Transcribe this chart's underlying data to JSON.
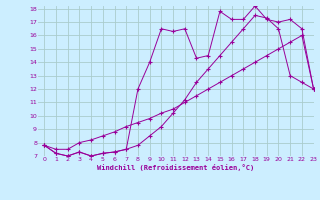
{
  "xlabel": "Windchill (Refroidissement éolien,°C)",
  "bg_color": "#cceeff",
  "line_color": "#990099",
  "grid_color": "#aacccc",
  "xlim": [
    -0.5,
    23
  ],
  "ylim": [
    7,
    18.2
  ],
  "xticks": [
    0,
    1,
    2,
    3,
    4,
    5,
    6,
    7,
    8,
    9,
    10,
    11,
    12,
    13,
    14,
    15,
    16,
    17,
    18,
    19,
    20,
    21,
    22,
    23
  ],
  "yticks": [
    7,
    8,
    9,
    10,
    11,
    12,
    13,
    14,
    15,
    16,
    17,
    18
  ],
  "line1_x": [
    0,
    1,
    2,
    3,
    4,
    5,
    6,
    7,
    8,
    9,
    10,
    11,
    12,
    13,
    14,
    15,
    16,
    17,
    18,
    19,
    20,
    21,
    22,
    23
  ],
  "line1_y": [
    7.8,
    7.2,
    7.0,
    7.3,
    7.0,
    7.2,
    7.3,
    7.5,
    7.8,
    8.5,
    9.2,
    10.2,
    11.2,
    12.5,
    13.5,
    14.5,
    15.5,
    16.5,
    17.5,
    17.3,
    16.5,
    13.0,
    12.5,
    12.0
  ],
  "line2_x": [
    0,
    1,
    2,
    3,
    4,
    5,
    6,
    7,
    8,
    9,
    10,
    11,
    12,
    13,
    14,
    15,
    16,
    17,
    18,
    19,
    20,
    21,
    22,
    23
  ],
  "line2_y": [
    7.8,
    7.5,
    7.5,
    8.0,
    8.2,
    8.5,
    8.8,
    9.2,
    9.5,
    9.8,
    10.2,
    10.5,
    11.0,
    11.5,
    12.0,
    12.5,
    13.0,
    13.5,
    14.0,
    14.5,
    15.0,
    15.5,
    16.0,
    12.0
  ],
  "line3_x": [
    0,
    1,
    2,
    3,
    4,
    5,
    6,
    7,
    8,
    9,
    10,
    11,
    12,
    13,
    14,
    15,
    16,
    17,
    18,
    19,
    20,
    21,
    22,
    23
  ],
  "line3_y": [
    7.8,
    7.2,
    7.0,
    7.3,
    7.0,
    7.2,
    7.3,
    7.5,
    12.0,
    14.0,
    16.5,
    16.3,
    16.5,
    14.3,
    14.5,
    17.8,
    17.2,
    17.2,
    18.2,
    17.2,
    17.0,
    17.2,
    16.5,
    12.0
  ]
}
